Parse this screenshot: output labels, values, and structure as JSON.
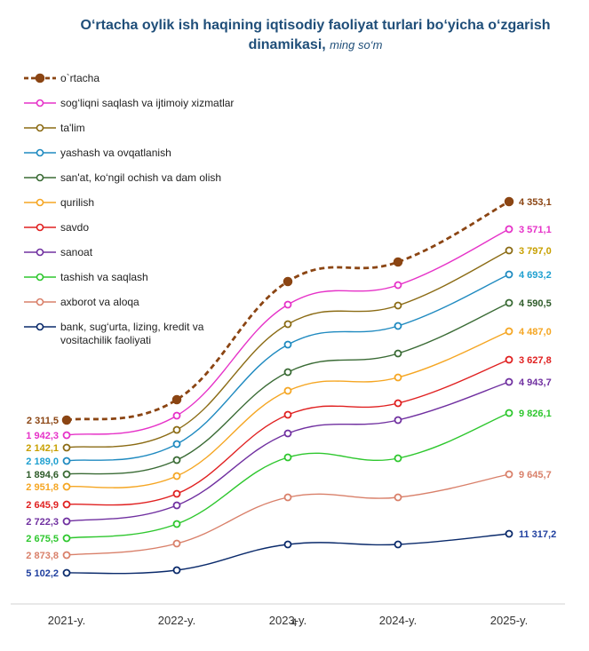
{
  "chart_data": {
    "type": "line",
    "title_main": "O‘rtacha oylik ish haqining iqtisodiy faoliyat turlari bo‘yicha o‘zgarish dinamikasi,",
    "title_unit": "ming so‘m",
    "categories": [
      "2021-y.",
      "2022-y.",
      "2023-y.",
      "2024-y.",
      "2025-y."
    ],
    "grid": false,
    "legend_position": "top-left",
    "series": [
      {
        "key": "ortacha",
        "name": "o`rtacha",
        "color": "#8b4513",
        "dashed": true,
        "first_label": "2 311,5",
        "last_label": "4 353,1"
      },
      {
        "key": "sogliq",
        "name": "sog‘liqni saqlash va ijtimoiy xizmatlar",
        "color": "#e632c8",
        "dashed": false,
        "first_label": "1 942,3",
        "last_label": "3 571,1"
      },
      {
        "key": "talim",
        "name": "ta'lim",
        "color": "#8b6b14",
        "dashed": false,
        "first_label": "2 142,1",
        "last_label": "3 797,0"
      },
      {
        "key": "yashash",
        "name": "yashash va ovqatlanish",
        "color": "#1f8ac0",
        "dashed": false,
        "first_label": "2 189,0",
        "last_label": "4 693,2"
      },
      {
        "key": "sanat",
        "name": "san'at, ko‘ngil ochish va dam olish",
        "color": "#3a6b35",
        "dashed": false,
        "first_label": "1 894,6",
        "last_label": "4 590,5"
      },
      {
        "key": "qurilish",
        "name": "qurilish",
        "color": "#f5a623",
        "dashed": false,
        "first_label": "2 951,8",
        "last_label": "4 487,0"
      },
      {
        "key": "savdo",
        "name": "savdo",
        "color": "#e02020",
        "dashed": false,
        "first_label": "2 645,9",
        "last_label": "3 627,8"
      },
      {
        "key": "sanoat",
        "name": "sanoat",
        "color": "#7030a0",
        "dashed": false,
        "first_label": "2 722,3",
        "last_label": "4 943,7"
      },
      {
        "key": "tashish",
        "name": "tashish va saqlash",
        "color": "#2ec72e",
        "dashed": false,
        "first_label": "2 675,5",
        "last_label": "9 826,1"
      },
      {
        "key": "axborot",
        "name": "axborot va aloqa",
        "color": "#d9806a",
        "dashed": false,
        "first_label": "2 873,8",
        "last_label": "9 645,7"
      },
      {
        "key": "bank",
        "name": "bank, sug‘urta, lizing, kredit va vositachilik faoliyati",
        "name_lines": [
          "bank, sug‘urta, lizing, kredit va",
          "vositachilik faoliyati"
        ],
        "color": "#0a2a6b",
        "dashed": false,
        "first_label": "5 102,2",
        "last_label": "11 317,2"
      }
    ]
  },
  "label_colors": {
    "ortacha": "#8b4513",
    "sogliq": "#e632c8",
    "talim": "#c8a000",
    "yashash": "#1fa0d0",
    "sanat": "#2f5c2a",
    "qurilish": "#f5a623",
    "savdo": "#e02020",
    "sanoat": "#7030a0",
    "tashish": "#2ec72e",
    "axborot": "#d9806a",
    "bank": "#1f3f9f"
  },
  "page_number": "4"
}
